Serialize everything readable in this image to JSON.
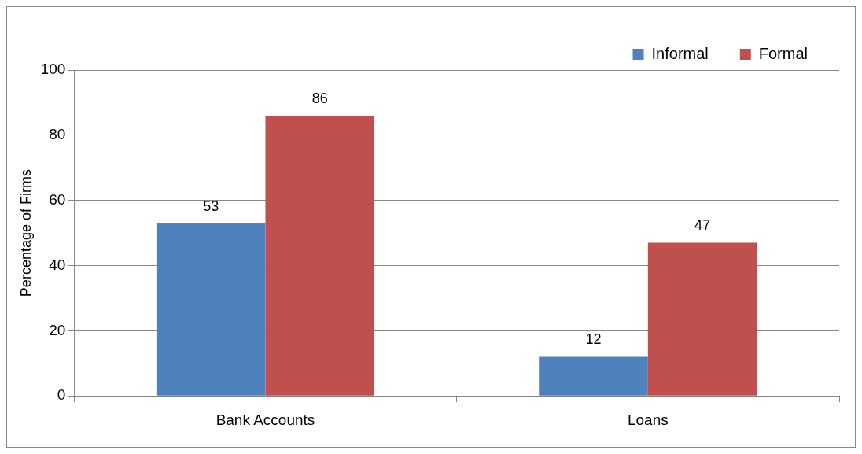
{
  "chart_data": {
    "type": "bar",
    "ylabel": "Percentage of Firms",
    "categories": [
      "Bank Accounts",
      "Loans"
    ],
    "series": [
      {
        "name": "Informal",
        "color": "#4f81bd",
        "values": [
          53,
          12
        ]
      },
      {
        "name": "Formal",
        "color": "#c0504d",
        "values": [
          86,
          47
        ]
      }
    ],
    "ylim": [
      0,
      100
    ],
    "yticks": [
      0,
      20,
      40,
      60,
      80,
      100
    ],
    "grid": "y",
    "legend": "top right",
    "data_labels": true
  }
}
